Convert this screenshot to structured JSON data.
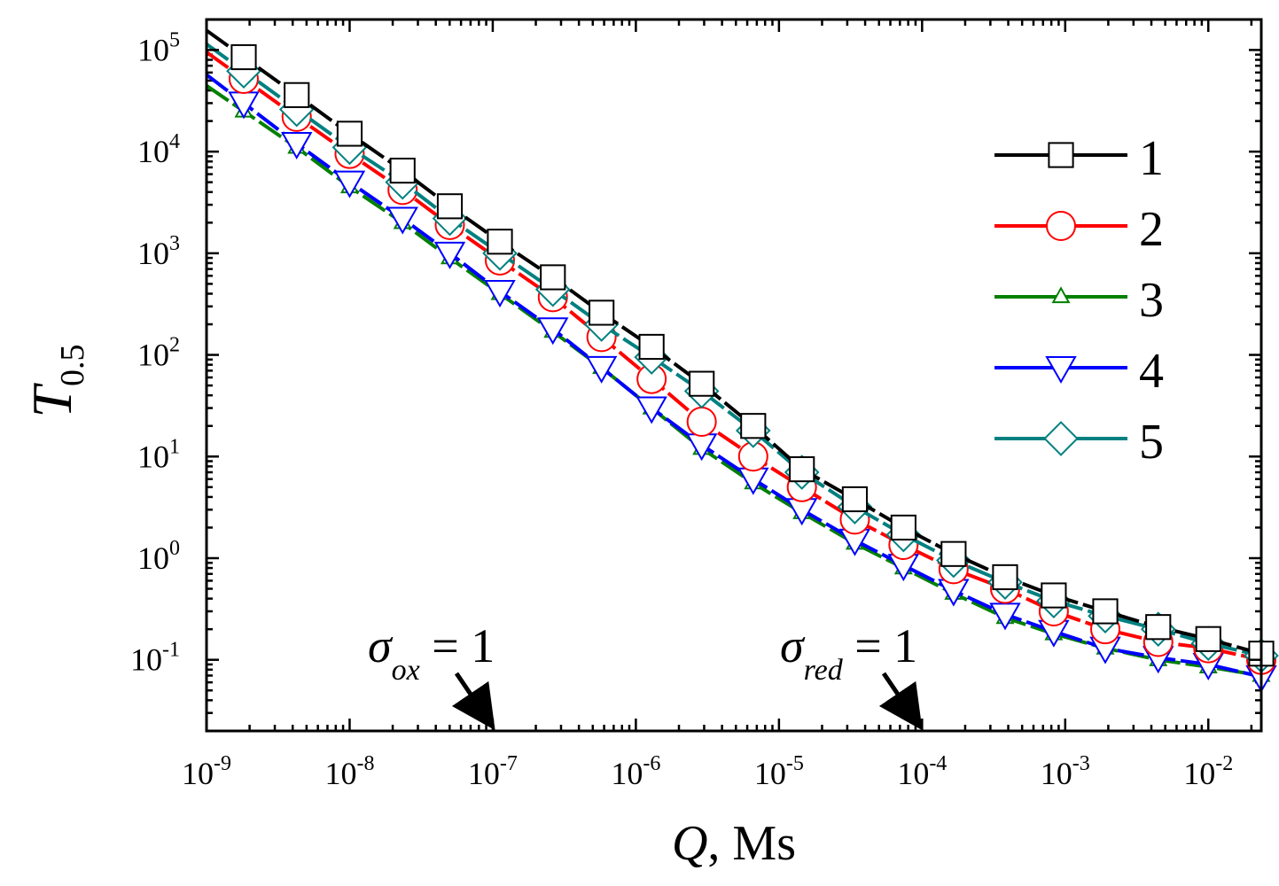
{
  "chart_data": {
    "type": "line",
    "xscale": "log",
    "yscale": "log",
    "xlim_exp": [
      -9,
      -1.63
    ],
    "ylim_exp": [
      -1.7,
      5.3
    ],
    "x_tick_exponents": [
      -9,
      -8,
      -7,
      -6,
      -5,
      -4,
      -3,
      -2
    ],
    "y_tick_exponents": [
      -1,
      0,
      1,
      2,
      3,
      4,
      5
    ],
    "tick_base": "10",
    "xlabel": {
      "var": "Q",
      "rest": ", Ms"
    },
    "ylabel": {
      "var": "T",
      "sub": "0.5"
    },
    "x_exponents": [
      -8.74,
      -8.37,
      -8.0,
      -7.63,
      -7.3,
      -6.95,
      -6.58,
      -6.24,
      -5.89,
      -5.54,
      -5.18,
      -4.84,
      -4.47,
      -4.13,
      -3.78,
      -3.42,
      -3.08,
      -2.72,
      -2.35,
      -2.0,
      -1.63
    ],
    "series": [
      {
        "name": "1",
        "label": "1",
        "color": "#000000",
        "marker": "square",
        "y": [
          85000,
          36000,
          15000,
          6500,
          2900,
          1300,
          580,
          260,
          120,
          52,
          20,
          7.5,
          3.8,
          2.0,
          1.1,
          0.65,
          0.43,
          0.3,
          0.21,
          0.16,
          0.115
        ]
      },
      {
        "name": "2",
        "label": "2",
        "color": "#ff0000",
        "marker": "circle",
        "y": [
          52000,
          22000,
          9500,
          4200,
          1900,
          850,
          370,
          150,
          58,
          22,
          10,
          5,
          2.4,
          1.35,
          0.78,
          0.5,
          0.3,
          0.2,
          0.15,
          0.13,
          0.1
        ]
      },
      {
        "name": "3",
        "label": "3",
        "color": "#008000",
        "marker": "triangle-up",
        "y": [
          25000,
          11000,
          4500,
          2000,
          900,
          400,
          170,
          75,
          30,
          12,
          5.5,
          2.8,
          1.4,
          0.8,
          0.45,
          0.26,
          0.18,
          0.13,
          0.1,
          0.085,
          0.07
        ]
      },
      {
        "name": "4",
        "label": "4",
        "color": "#0000ff",
        "marker": "triangle-down",
        "y": [
          30000,
          12000,
          5000,
          2200,
          1000,
          420,
          180,
          75,
          30,
          13,
          6,
          3,
          1.5,
          0.85,
          0.48,
          0.28,
          0.19,
          0.13,
          0.105,
          0.09,
          0.068
        ]
      },
      {
        "name": "5",
        "label": "5",
        "color": "#008080",
        "marker": "diamond",
        "y": [
          62000,
          26000,
          11000,
          5000,
          2200,
          1000,
          440,
          200,
          95,
          44,
          18,
          7,
          3.2,
          1.7,
          0.95,
          0.58,
          0.38,
          0.27,
          0.2,
          0.145,
          0.11
        ]
      }
    ],
    "annotations": [
      {
        "sym": "σ",
        "sub": "ox",
        "rest": " = 1",
        "x_exp": -7
      },
      {
        "sym": "σ",
        "sub": "red",
        "rest": " = 1",
        "x_exp": -4
      }
    ],
    "legend_position": "top-right"
  }
}
